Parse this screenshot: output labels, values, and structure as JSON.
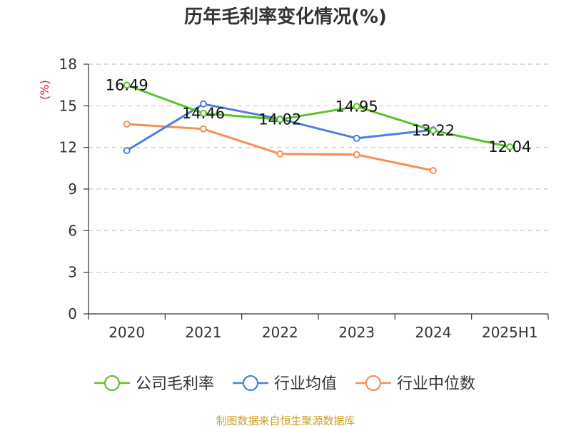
{
  "chart_data": {
    "type": "line",
    "title": "历年毛利率变化情况(%)",
    "ylabel": "(%)",
    "xlabel": "",
    "categories": [
      "2020",
      "2021",
      "2022",
      "2023",
      "2024",
      "2025H1"
    ],
    "ylim": [
      0,
      18
    ],
    "yticks": [
      0,
      3,
      6,
      9,
      12,
      15,
      18
    ],
    "grid": true,
    "legend_position": "bottom",
    "series": [
      {
        "name": "公司毛利率",
        "color": "#5cc22a",
        "values": [
          16.49,
          14.46,
          14.02,
          14.95,
          13.22,
          12.04
        ],
        "show_labels": true
      },
      {
        "name": "行业均值",
        "color": "#4f7fdc",
        "values": [
          11.77,
          15.13,
          14.05,
          12.66,
          13.26,
          null
        ],
        "show_labels": false
      },
      {
        "name": "行业中位数",
        "color": "#f58f56",
        "values": [
          13.68,
          13.33,
          11.53,
          11.48,
          10.33,
          null
        ],
        "show_labels": false
      }
    ]
  },
  "colors": {
    "axis": "#333333",
    "grid": "#c8c8c8",
    "unit_label": "#d62020",
    "source": "#c9a227"
  },
  "source_text": "制图数据来自恒生聚源数据库"
}
